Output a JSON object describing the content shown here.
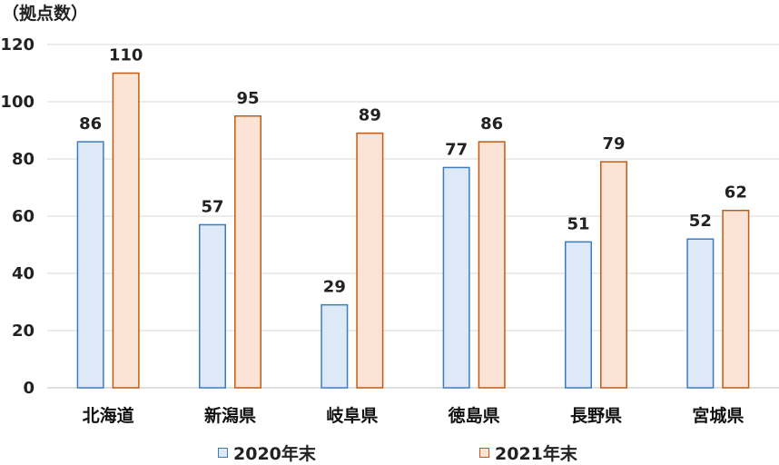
{
  "chart_data": {
    "type": "bar",
    "ylabel": "（拠点数）",
    "ylim": [
      0,
      120
    ],
    "yticks": [
      "0",
      "20",
      "40",
      "60",
      "80",
      "100",
      "120"
    ],
    "grid": true,
    "legend_position": "bottom",
    "categories": [
      "北海道",
      "新潟県",
      "岐阜県",
      "徳島県",
      "長野県",
      "宮城県"
    ],
    "series": [
      {
        "name": "2020年末",
        "values": [
          86,
          57,
          29,
          77,
          51,
          52
        ],
        "fill": "#dde9f6",
        "stroke": "#3b7cc0"
      },
      {
        "name": "2021年末",
        "values": [
          110,
          95,
          89,
          86,
          79,
          62
        ],
        "fill": "#fbe3d6",
        "stroke": "#c55a11"
      }
    ]
  }
}
